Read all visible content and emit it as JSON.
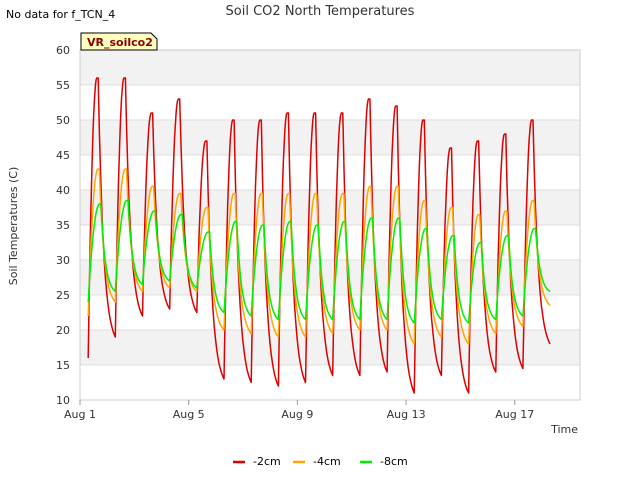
{
  "note": "No data for f_TCN_4",
  "badge": "VR_soilco2",
  "chart_data": {
    "type": "line",
    "title": "Soil CO2 North Temperatures",
    "xlabel": "Time",
    "ylabel": "Soil Temperatures (C)",
    "xlim": [
      1,
      19.4
    ],
    "ylim": [
      10,
      60
    ],
    "x_ticks": [
      1,
      5,
      9,
      13,
      17
    ],
    "x_tick_labels": [
      "Aug 1",
      "Aug 5",
      "Aug 9",
      "Aug 13",
      "Aug 17"
    ],
    "y_ticks": [
      10,
      15,
      20,
      25,
      30,
      35,
      40,
      45,
      50,
      55,
      60
    ],
    "grid": true,
    "legend_position": "bottom",
    "series": [
      {
        "name": "-2cm",
        "color": "#dd0000",
        "day_start": 1.3,
        "day_end": 18.65,
        "peaks": [
          56,
          56,
          51,
          53,
          47,
          50,
          50,
          51,
          51,
          51,
          53,
          52,
          50,
          46,
          47,
          48,
          50
        ],
        "mins": [
          16,
          19,
          22,
          23,
          22.5,
          13,
          12.5,
          12,
          12.5,
          13.5,
          13.5,
          14,
          11,
          13.5,
          11,
          14,
          14.5
        ],
        "end_value": 18
      },
      {
        "name": "-4cm",
        "color": "#ffa500",
        "day_start": 1.3,
        "day_end": 18.65,
        "peaks": [
          43,
          43,
          40.5,
          39.5,
          37.5,
          39.5,
          39.5,
          39.5,
          39.5,
          39.5,
          40.5,
          40.5,
          38.5,
          37.5,
          36.5,
          37,
          38.5
        ],
        "mins": [
          22,
          24,
          25.5,
          26,
          25.5,
          20,
          19.5,
          19,
          19,
          19.5,
          20,
          20,
          18,
          19,
          18,
          19.5,
          20.5
        ],
        "end_value": 23.5
      },
      {
        "name": "-8cm",
        "color": "#00ee00",
        "day_start": 1.3,
        "day_end": 18.65,
        "peaks": [
          38,
          38.5,
          37,
          36.5,
          34,
          35.5,
          35,
          35.5,
          35,
          35.5,
          36,
          36,
          34.5,
          33.5,
          32.5,
          33.5,
          34.5
        ],
        "mins": [
          24,
          25.5,
          26.5,
          27,
          26,
          22.5,
          22,
          21.5,
          21.5,
          21.5,
          21.5,
          21.5,
          21,
          21.5,
          21,
          21.5,
          22
        ],
        "end_value": 25.5
      }
    ]
  }
}
